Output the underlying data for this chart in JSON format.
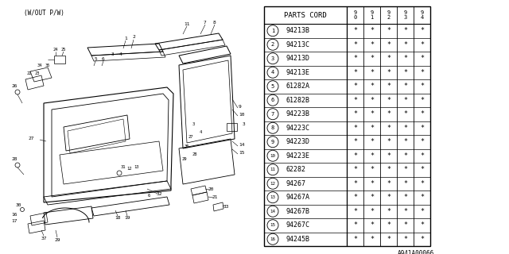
{
  "diagram_label": "(W/OUT P/W)",
  "parts_cord_header": "PARTS CORD",
  "year_headers": [
    "9\n0",
    "9\n1",
    "9\n2",
    "9\n3",
    "9\n4"
  ],
  "rows": [
    {
      "num": 1,
      "part": "94213B",
      "vals": [
        "*",
        "*",
        "*",
        "*",
        "*"
      ]
    },
    {
      "num": 2,
      "part": "94213C",
      "vals": [
        "*",
        "*",
        "*",
        "*",
        "*"
      ]
    },
    {
      "num": 3,
      "part": "94213D",
      "vals": [
        "*",
        "*",
        "*",
        "*",
        "*"
      ]
    },
    {
      "num": 4,
      "part": "94213E",
      "vals": [
        "*",
        "*",
        "*",
        "*",
        "*"
      ]
    },
    {
      "num": 5,
      "part": "61282A",
      "vals": [
        "*",
        "*",
        "*",
        "*",
        "*"
      ]
    },
    {
      "num": 6,
      "part": "61282B",
      "vals": [
        "*",
        "*",
        "*",
        "*",
        "*"
      ]
    },
    {
      "num": 7,
      "part": "94223B",
      "vals": [
        "*",
        "*",
        "*",
        "*",
        "*"
      ]
    },
    {
      "num": 8,
      "part": "94223C",
      "vals": [
        "*",
        "*",
        "*",
        "*",
        "*"
      ]
    },
    {
      "num": 9,
      "part": "94223D",
      "vals": [
        "*",
        "*",
        "*",
        "*",
        "*"
      ]
    },
    {
      "num": 10,
      "part": "94223E",
      "vals": [
        "*",
        "*",
        "*",
        "*",
        "*"
      ]
    },
    {
      "num": 11,
      "part": "62282",
      "vals": [
        "*",
        "*",
        "*",
        "*",
        "*"
      ]
    },
    {
      "num": 12,
      "part": "94267",
      "vals": [
        "*",
        "*",
        "*",
        "*",
        "*"
      ]
    },
    {
      "num": 13,
      "part": "94267A",
      "vals": [
        "*",
        "*",
        "*",
        "*",
        "*"
      ]
    },
    {
      "num": 14,
      "part": "94267B",
      "vals": [
        "*",
        "*",
        "*",
        "*",
        "*"
      ]
    },
    {
      "num": 15,
      "part": "94267C",
      "vals": [
        "*",
        "*",
        "*",
        "*",
        "*"
      ]
    },
    {
      "num": 16,
      "part": "94245B",
      "vals": [
        "*",
        "*",
        "*",
        "*",
        "*"
      ]
    }
  ],
  "footer": "A941A00066",
  "bg_color": "#ffffff",
  "line_color": "#000000"
}
